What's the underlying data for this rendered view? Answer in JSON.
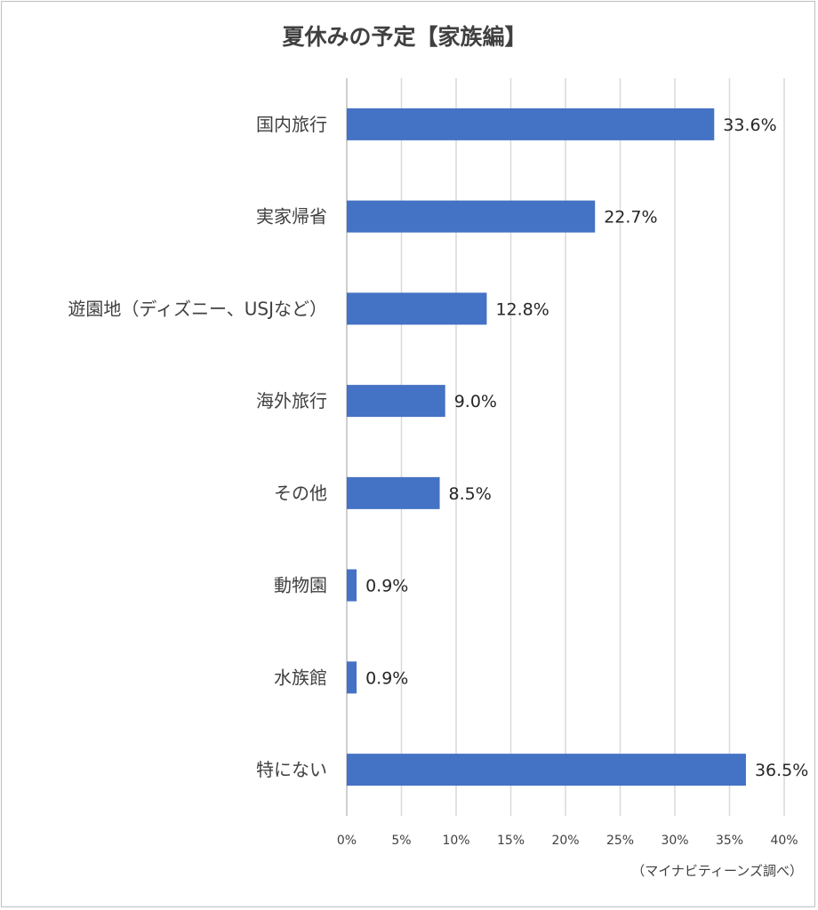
{
  "chart_data": {
    "type": "bar",
    "orientation": "horizontal",
    "title": "夏休みの予定【家族編】",
    "categories": [
      "国内旅行",
      "実家帰省",
      "遊園地（ディズニー、USJなど）",
      "海外旅行",
      "その他",
      "動物園",
      "水族館",
      "特にない"
    ],
    "values": [
      33.6,
      22.7,
      12.8,
      9.0,
      8.5,
      0.9,
      0.9,
      36.5
    ],
    "data_labels": [
      "33.6%",
      "22.7%",
      "12.8%",
      "9.0%",
      "8.5%",
      "0.9%",
      "0.9%",
      "36.5%"
    ],
    "xlim": [
      0,
      40
    ],
    "x_ticks": [
      0,
      5,
      10,
      15,
      20,
      25,
      30,
      35,
      40
    ],
    "x_tick_labels": [
      "0%",
      "5%",
      "10%",
      "15%",
      "20%",
      "25%",
      "30%",
      "35%",
      "40%"
    ],
    "grid": true,
    "legend": "none",
    "bar_color": "#4472c4",
    "source": "（マイナビティーンズ調べ）"
  }
}
